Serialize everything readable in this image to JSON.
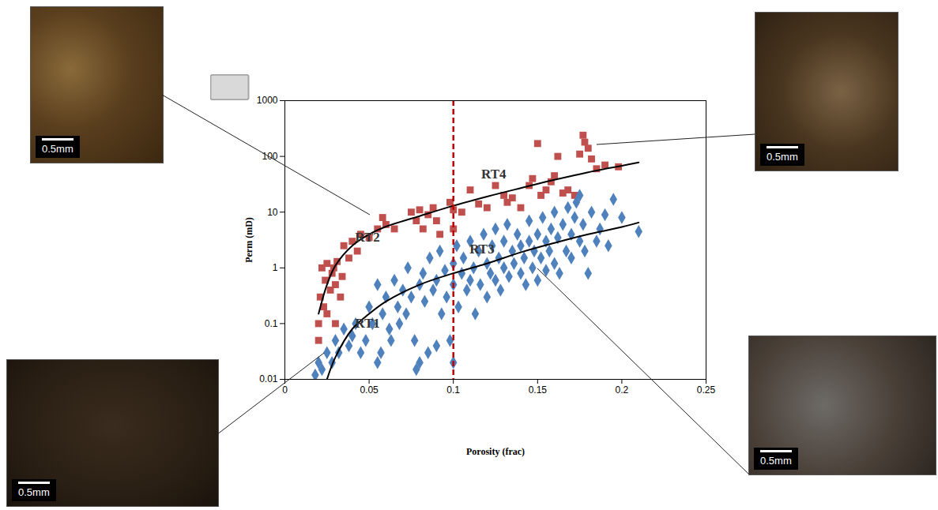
{
  "chart_data": {
    "type": "scatter",
    "xlabel": "Porosity (frac)",
    "ylabel": "Perm (mD)",
    "xlim": [
      0,
      0.25
    ],
    "xticks": [
      0,
      0.05,
      0.1,
      0.15,
      0.2,
      0.25
    ],
    "ylim": [
      0.01,
      1000
    ],
    "yticks": [
      0.01,
      0.1,
      1,
      10,
      100,
      1000
    ],
    "log": "y",
    "grid": false,
    "series": [
      {
        "type": "scatter",
        "marker": "square",
        "color": "#c0504d",
        "x": [
          0.02,
          0.02,
          0.021,
          0.022,
          0.023,
          0.024,
          0.025,
          0.025,
          0.027,
          0.028,
          0.029,
          0.03,
          0.03,
          0.031,
          0.033,
          0.034,
          0.035,
          0.038,
          0.04,
          0.043,
          0.045,
          0.05,
          0.055,
          0.058,
          0.06,
          0.065,
          0.075,
          0.078,
          0.08,
          0.082,
          0.085,
          0.088,
          0.09,
          0.092,
          0.098,
          0.1,
          0.1,
          0.105,
          0.11,
          0.115,
          0.12,
          0.125,
          0.13,
          0.132,
          0.135,
          0.14,
          0.145,
          0.147,
          0.15,
          0.152,
          0.155,
          0.158,
          0.16,
          0.162,
          0.165,
          0.168,
          0.172,
          0.175,
          0.177,
          0.178,
          0.18,
          0.182,
          0.185,
          0.19,
          0.198
        ],
        "values": [
          0.05,
          0.1,
          0.3,
          1,
          0.2,
          0.6,
          0.15,
          1.2,
          0.4,
          0.8,
          1,
          0.1,
          0.5,
          1.3,
          0.3,
          0.7,
          2.5,
          1.5,
          3,
          2,
          4,
          3.5,
          5,
          8,
          6,
          5,
          10,
          7,
          11,
          5,
          9,
          12,
          7,
          4,
          15,
          5,
          11,
          10,
          25,
          14,
          12,
          30,
          20,
          15,
          18,
          12,
          30,
          40,
          170,
          20,
          25,
          35,
          45,
          100,
          22,
          25,
          20,
          110,
          240,
          180,
          140,
          90,
          60,
          70,
          65
        ]
      },
      {
        "type": "scatter",
        "marker": "diamond",
        "color": "#4f81bd",
        "x": [
          0.018,
          0.02,
          0.022,
          0.025,
          0.028,
          0.03,
          0.032,
          0.035,
          0.038,
          0.04,
          0.042,
          0.045,
          0.048,
          0.05,
          0.052,
          0.055,
          0.055,
          0.057,
          0.058,
          0.06,
          0.062,
          0.063,
          0.065,
          0.067,
          0.068,
          0.07,
          0.072,
          0.073,
          0.075,
          0.077,
          0.078,
          0.08,
          0.08,
          0.082,
          0.083,
          0.085,
          0.086,
          0.088,
          0.09,
          0.09,
          0.092,
          0.093,
          0.095,
          0.096,
          0.098,
          0.1,
          0.1,
          0.1,
          0.102,
          0.103,
          0.105,
          0.106,
          0.108,
          0.11,
          0.11,
          0.112,
          0.113,
          0.115,
          0.116,
          0.118,
          0.12,
          0.12,
          0.122,
          0.123,
          0.125,
          0.125,
          0.127,
          0.128,
          0.13,
          0.13,
          0.132,
          0.133,
          0.135,
          0.136,
          0.138,
          0.14,
          0.14,
          0.142,
          0.143,
          0.145,
          0.145,
          0.147,
          0.148,
          0.15,
          0.15,
          0.152,
          0.153,
          0.155,
          0.155,
          0.157,
          0.158,
          0.16,
          0.16,
          0.162,
          0.163,
          0.165,
          0.167,
          0.168,
          0.17,
          0.17,
          0.172,
          0.173,
          0.175,
          0.175,
          0.177,
          0.178,
          0.18,
          0.182,
          0.185,
          0.187,
          0.19,
          0.192,
          0.195,
          0.2,
          0.21
        ],
        "values": [
          0.012,
          0.02,
          0.015,
          0.03,
          0.02,
          0.05,
          0.03,
          0.08,
          0.04,
          0.06,
          0.1,
          0.03,
          0.05,
          0.2,
          0.1,
          0.02,
          0.5,
          0.03,
          0.15,
          0.3,
          0.08,
          0.05,
          0.6,
          0.2,
          0.1,
          0.4,
          0.15,
          1,
          0.3,
          0.05,
          0.015,
          0.5,
          0.02,
          0.8,
          0.25,
          0.03,
          1.5,
          0.4,
          0.6,
          0.04,
          2,
          0.15,
          0.9,
          0.3,
          0.05,
          1.2,
          0.5,
          0.02,
          2.5,
          0.2,
          0.8,
          1.5,
          0.4,
          3,
          0.6,
          1,
          0.15,
          2,
          0.5,
          4,
          1.2,
          0.3,
          0.8,
          2.5,
          5,
          0.6,
          1.5,
          0.4,
          3,
          1,
          6,
          0.7,
          2,
          1.2,
          4,
          0.8,
          2.5,
          1.5,
          0.5,
          3,
          7,
          1,
          2,
          0.6,
          4,
          1.5,
          8,
          3,
          0.9,
          2,
          5,
          1.2,
          10,
          3.5,
          0.8,
          6,
          2,
          12,
          4,
          1.5,
          8,
          15,
          3,
          20,
          6,
          2,
          0.8,
          10,
          3,
          5,
          9,
          2.5,
          17,
          8,
          4.5
        ]
      },
      {
        "type": "line",
        "color": "#000000",
        "line_style": "solid",
        "x": [
          0.02,
          0.025,
          0.03,
          0.04,
          0.05,
          0.06,
          0.08,
          0.1,
          0.12,
          0.14,
          0.16,
          0.18,
          0.2,
          0.21
        ],
        "values": [
          0.15,
          0.5,
          1.1,
          2.5,
          4,
          5.5,
          8.5,
          13,
          19,
          27,
          38,
          52,
          68,
          78
        ]
      },
      {
        "type": "line",
        "color": "#000000",
        "line_style": "solid",
        "x": [
          0.025,
          0.03,
          0.04,
          0.05,
          0.06,
          0.08,
          0.1,
          0.12,
          0.14,
          0.16,
          0.18,
          0.2,
          0.21
        ],
        "values": [
          0.01,
          0.025,
          0.08,
          0.15,
          0.25,
          0.5,
          0.8,
          1.2,
          1.9,
          2.8,
          4,
          5.4,
          6.5
        ]
      }
    ],
    "reference_lines": [
      {
        "x": 0.1,
        "color": "#c00000",
        "line_style": "dashed"
      }
    ],
    "annotations": [
      {
        "text": "RT4",
        "x": 0.124,
        "y": 48
      },
      {
        "text": "RT2",
        "x": 0.049,
        "y": 3.5
      },
      {
        "text": "RT3",
        "x": 0.117,
        "y": 2.2
      },
      {
        "text": "RT1",
        "x": 0.049,
        "y": 0.1
      }
    ],
    "photos": [
      {
        "scale_label": "0.5mm"
      },
      {
        "scale_label": "0.5mm"
      },
      {
        "scale_label": "0.5mm"
      },
      {
        "scale_label": "0.5mm"
      }
    ]
  }
}
